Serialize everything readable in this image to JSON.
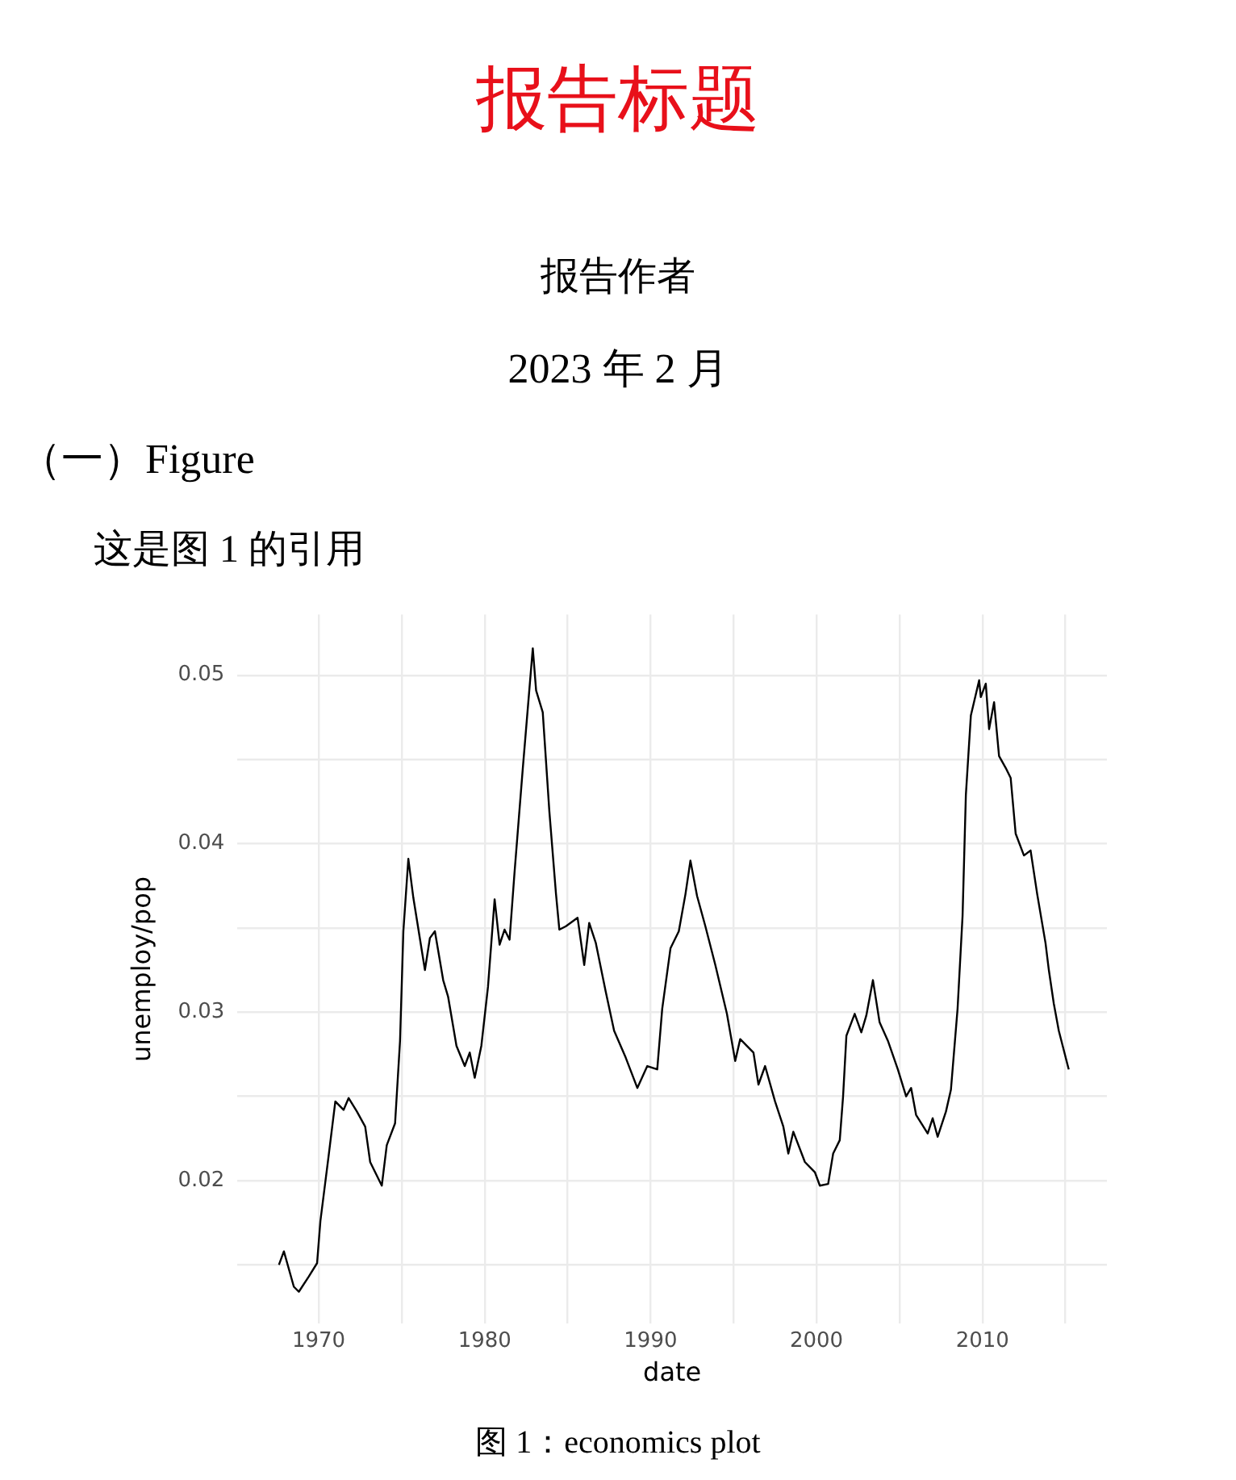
{
  "chart_data": {
    "type": "line",
    "title": "报告标题",
    "annotations": [
      "报告作者",
      "2023 年 2 月",
      "（一）Figure",
      "这是图 1 的引用",
      "图 1：economics plot"
    ],
    "xlabel": "date",
    "ylabel": "unemploy/pop",
    "series": [
      {
        "color": "#000000",
        "x": [
          1967.6,
          1967.9,
          1968.5,
          1968.8,
          1969.4,
          1969.9,
          1970.1,
          1970.6,
          1971.0,
          1971.5,
          1971.8,
          1972.3,
          1972.8,
          1973.1,
          1973.8,
          1974.1,
          1974.6,
          1974.9,
          1975.1,
          1975.4,
          1975.7,
          1976.4,
          1976.7,
          1977.0,
          1977.5,
          1977.8,
          1978.3,
          1978.8,
          1979.1,
          1979.4,
          1979.8,
          1980.2,
          1980.4,
          1980.6,
          1980.9,
          1981.2,
          1981.5,
          1981.8,
          1982.3,
          1982.9,
          1983.1,
          1983.5,
          1983.9,
          1984.3,
          1984.5,
          1984.9,
          1985.6,
          1986.0,
          1986.3,
          1986.7,
          1987.3,
          1987.8,
          1988.5,
          1989.2,
          1989.8,
          1990.4,
          1990.7,
          1991.2,
          1991.7,
          1992.1,
          1992.4,
          1992.8,
          1993.3,
          1993.9,
          1994.6,
          1995.1,
          1995.4,
          1996.2,
          1996.5,
          1996.9,
          1997.5,
          1998.0,
          1998.3,
          1998.6,
          1999.3,
          1999.9,
          2000.2,
          2000.7,
          2001.0,
          2001.4,
          2001.6,
          2001.8,
          2002.3,
          2002.7,
          2003.0,
          2003.4,
          2003.8,
          2004.3,
          2004.9,
          2005.4,
          2005.7,
          2006.0,
          2006.7,
          2007.0,
          2007.3,
          2007.8,
          2008.1,
          2008.5,
          2008.8,
          2009.0,
          2009.3,
          2009.8,
          2009.9,
          2010.2,
          2010.4,
          2010.7,
          2011.0,
          2011.4,
          2011.7,
          2012.0,
          2012.5,
          2012.9,
          2013.3,
          2013.8,
          2014.0,
          2014.3,
          2014.6,
          2015.2
        ],
        "values": [
          0.015,
          0.0158,
          0.0137,
          0.0134,
          0.0143,
          0.0151,
          0.0176,
          0.0215,
          0.0247,
          0.0242,
          0.0249,
          0.0241,
          0.0232,
          0.0211,
          0.0197,
          0.0221,
          0.0234,
          0.0283,
          0.0348,
          0.0391,
          0.0368,
          0.0325,
          0.0344,
          0.0348,
          0.0319,
          0.0309,
          0.028,
          0.0268,
          0.0276,
          0.0261,
          0.028,
          0.0315,
          0.0341,
          0.0367,
          0.034,
          0.0349,
          0.0343,
          0.0383,
          0.0445,
          0.0516,
          0.0491,
          0.0478,
          0.0419,
          0.037,
          0.0349,
          0.0351,
          0.0356,
          0.0328,
          0.0353,
          0.0341,
          0.0312,
          0.0289,
          0.0273,
          0.0255,
          0.0268,
          0.0266,
          0.0302,
          0.0338,
          0.0348,
          0.037,
          0.039,
          0.0369,
          0.0351,
          0.0328,
          0.0299,
          0.0271,
          0.0284,
          0.0276,
          0.0257,
          0.0268,
          0.0247,
          0.0232,
          0.0216,
          0.0229,
          0.0211,
          0.0205,
          0.0197,
          0.0198,
          0.0216,
          0.0224,
          0.025,
          0.0286,
          0.0299,
          0.0288,
          0.0298,
          0.0319,
          0.0294,
          0.0283,
          0.0266,
          0.025,
          0.0255,
          0.0239,
          0.0228,
          0.0237,
          0.0226,
          0.0241,
          0.0254,
          0.0302,
          0.0357,
          0.0429,
          0.0476,
          0.0497,
          0.0487,
          0.0495,
          0.0468,
          0.0484,
          0.0452,
          0.0445,
          0.0439,
          0.0406,
          0.0393,
          0.0396,
          0.037,
          0.0341,
          0.0325,
          0.0305,
          0.0289,
          0.0266
        ]
      }
    ],
    "xlim": [
      1965.1,
      2017.5
    ],
    "xticks": [
      1970,
      {
        "value": 1975,
        "label": null
      },
      1980,
      {
        "value": 1985,
        "label": null
      },
      1990,
      {
        "value": 1995,
        "label": null
      },
      2000,
      {
        "value": 2005,
        "label": null
      },
      2010,
      {
        "value": 2015,
        "label": null
      }
    ],
    "ylim": [
      0.0115,
      0.0536
    ],
    "yticks": [
      {
        "value": 0.015,
        "label": null
      },
      0.02,
      {
        "value": 0.025,
        "label": null
      },
      0.03,
      {
        "value": 0.035,
        "label": null
      },
      0.04,
      {
        "value": 0.045,
        "label": null
      },
      0.05
    ],
    "grid": true,
    "legend": false,
    "marker": "none",
    "line_style": "solid"
  }
}
